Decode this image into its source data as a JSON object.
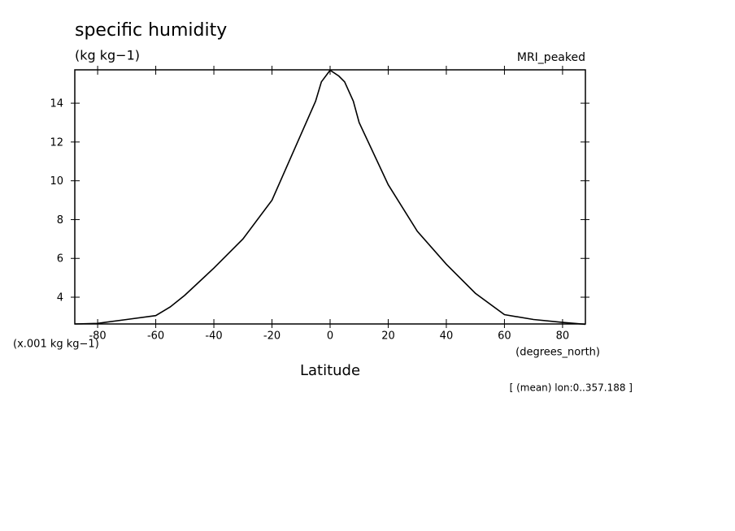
{
  "chart_data": {
    "type": "line",
    "title": "specific humidity",
    "units": "(kg kg−1)",
    "model": "MRI_peaked",
    "y_scale_label": "(x.001 kg kg−1)",
    "x_units": "(degrees_north)",
    "xlabel": "Latitude",
    "note": "[ (mean) lon:0..357.188 ]",
    "x": [
      -87.86,
      -80,
      -70,
      -60,
      -55,
      -50,
      -40,
      -30,
      -20,
      -10,
      -5,
      -3,
      0,
      3,
      5,
      8,
      10,
      20,
      30,
      40,
      50,
      60,
      70,
      80,
      87.86
    ],
    "series": [
      {
        "name": "MRI_peaked",
        "color": "#000000",
        "values": [
          2.62,
          2.65,
          2.85,
          3.05,
          3.5,
          4.1,
          5.5,
          7.0,
          9.0,
          12.4,
          14.1,
          15.1,
          15.7,
          15.4,
          15.1,
          14.1,
          13.0,
          9.8,
          7.4,
          5.7,
          4.2,
          3.1,
          2.85,
          2.7,
          2.6
        ]
      }
    ],
    "xlim": [
      -87.86,
      87.86
    ],
    "ylim": [
      2.62,
      15.72
    ],
    "xticks": [
      -80,
      -60,
      -40,
      -20,
      0,
      20,
      40,
      60,
      80
    ],
    "yticks": [
      4,
      6,
      8,
      10,
      12,
      14
    ]
  }
}
